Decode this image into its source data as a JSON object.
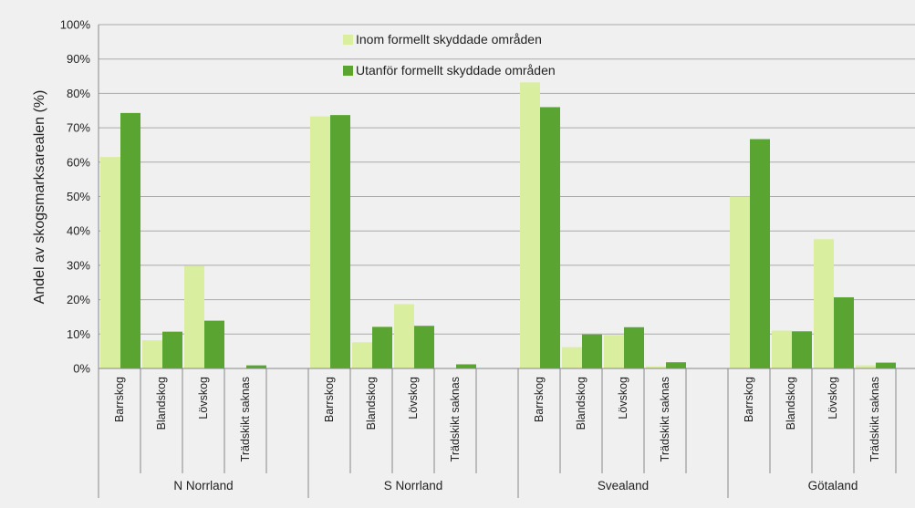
{
  "chart_data": {
    "type": "bar",
    "title": "",
    "xlabel": "",
    "ylabel": "Andel av skogsmarksarealen (%)",
    "ylim": [
      0,
      100
    ],
    "yticks": [
      "0%",
      "10%",
      "20%",
      "30%",
      "40%",
      "50%",
      "60%",
      "70%",
      "80%",
      "90%",
      "100%"
    ],
    "grid": true,
    "legend_position": "top-center",
    "groups": [
      "N Norrland",
      "S Norrland",
      "Svealand",
      "Götaland"
    ],
    "categories": [
      "Barrskog",
      "Blandskog",
      "Lövskog",
      "Trädskikt saknas"
    ],
    "series": [
      {
        "name": "Inom formellt skyddade områden",
        "color": "#d9ee9f",
        "values": [
          [
            61.5,
            8.2,
            29.8,
            0.0
          ],
          [
            73.3,
            7.6,
            18.7,
            0.0
          ],
          [
            83.2,
            6.2,
            9.7,
            0.6
          ],
          [
            50.0,
            11.0,
            37.6,
            0.9
          ]
        ]
      },
      {
        "name": "Utanför formellt skyddade områden",
        "color": "#5aa532",
        "values": [
          [
            74.3,
            10.7,
            13.9,
            0.9
          ],
          [
            73.7,
            12.1,
            12.4,
            1.2
          ],
          [
            76.0,
            9.9,
            12.0,
            1.8
          ],
          [
            66.7,
            10.8,
            20.7,
            1.7
          ]
        ]
      }
    ]
  }
}
